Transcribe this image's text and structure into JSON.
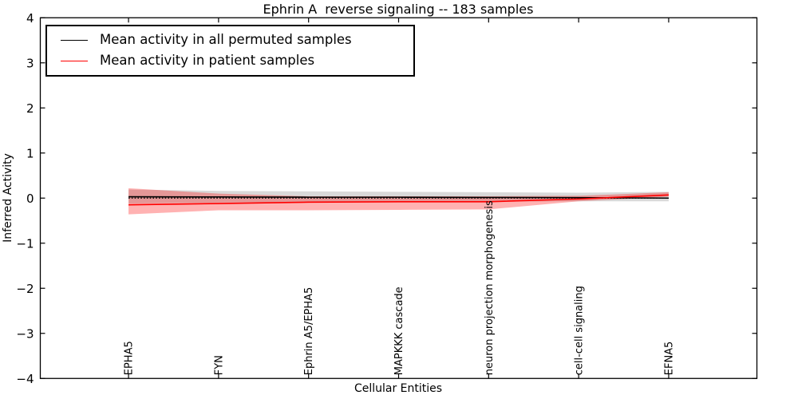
{
  "chart_data": {
    "type": "line",
    "title": "Ephrin A  reverse signaling -- 183 samples",
    "xlabel": "Cellular Entities",
    "ylabel": "Inferred Activity",
    "ylim": [
      -4,
      4
    ],
    "xlim": [
      -0.98,
      6.98
    ],
    "grid": false,
    "legend_position": "upper left",
    "yticks": [
      4,
      3,
      2,
      1,
      0,
      -1,
      -2,
      -3,
      -4
    ],
    "ytick_labels": [
      "4",
      "3",
      "2",
      "1",
      "0",
      "−1",
      "−2",
      "−3",
      "−4"
    ],
    "categories": [
      "EPHA5",
      "FYN",
      "Ephrin A5/EPHA5",
      "MAPKKK cascade",
      "neuron projection morphogenesis",
      "cell-cell signaling",
      "EFNA5"
    ],
    "zero_line": {
      "y": 0,
      "style": "dotted",
      "color": "#000000"
    },
    "series": [
      {
        "name": "Mean activity in all permuted samples",
        "color": "#000000",
        "values": [
          0.03,
          0.025,
          0.02,
          0.02,
          0.015,
          0.01,
          0.0
        ],
        "band_upper": [
          0.19,
          0.16,
          0.15,
          0.14,
          0.13,
          0.12,
          0.14
        ],
        "band_lower": [
          -0.12,
          -0.1,
          -0.09,
          -0.09,
          -0.08,
          -0.07,
          -0.07
        ],
        "band_color": "rgba(0,0,0,0.15)"
      },
      {
        "name": "Mean activity in patient samples",
        "color": "#ff0000",
        "values": [
          -0.15,
          -0.12,
          -0.09,
          -0.08,
          -0.08,
          -0.02,
          0.07
        ],
        "band_upper": [
          0.22,
          0.1,
          0.04,
          0.04,
          0.04,
          0.05,
          0.13
        ],
        "band_lower": [
          -0.36,
          -0.27,
          -0.27,
          -0.26,
          -0.25,
          -0.07,
          0.03
        ],
        "band_color": "rgba(255,0,0,0.3)"
      }
    ]
  }
}
